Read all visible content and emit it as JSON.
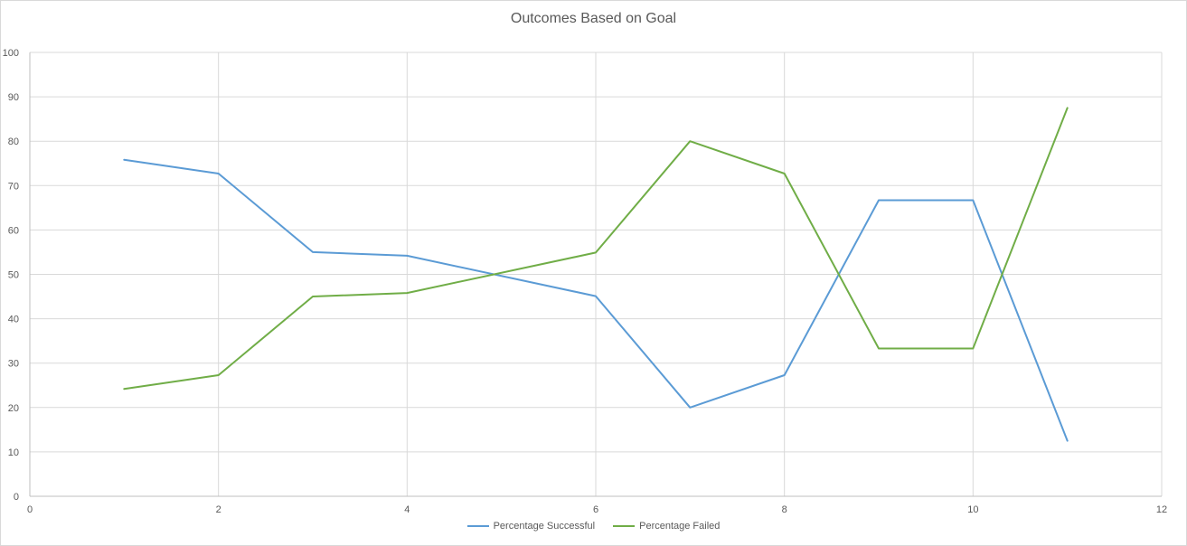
{
  "chart_data": {
    "type": "line",
    "title": "Outcomes Based on Goal",
    "xlabel": "",
    "ylabel": "",
    "xlim": [
      0,
      12
    ],
    "ylim": [
      0,
      100
    ],
    "x_ticks": [
      0,
      2,
      4,
      6,
      8,
      10,
      12
    ],
    "y_ticks": [
      0,
      10,
      20,
      30,
      40,
      50,
      60,
      70,
      80,
      90,
      100
    ],
    "grid": true,
    "legend_position": "bottom",
    "x": [
      1,
      2,
      3,
      4,
      6,
      7,
      8,
      9,
      10,
      11
    ],
    "series": [
      {
        "name": "Percentage Successful",
        "color": "#5b9bd5",
        "values": [
          75.8,
          72.7,
          55.0,
          54.2,
          45.1,
          20.0,
          27.3,
          66.7,
          66.7,
          12.5
        ]
      },
      {
        "name": "Percentage Failed",
        "color": "#70ad47",
        "values": [
          24.2,
          27.3,
          45.0,
          45.8,
          54.9,
          80.0,
          72.7,
          33.3,
          33.3,
          87.5
        ]
      }
    ]
  }
}
